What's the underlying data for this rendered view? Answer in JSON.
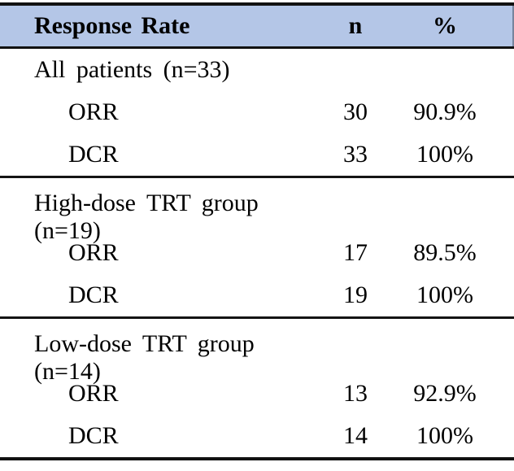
{
  "table": {
    "header": {
      "label": "Response Rate",
      "n": "n",
      "pct": "%"
    },
    "colors": {
      "header_bg": "#B4C6E7",
      "rule": "#141414",
      "text": "#000000"
    },
    "sections": [
      {
        "group": "All patients (n=33)",
        "rows": [
          {
            "label": "ORR",
            "n": "30",
            "pct": "90.9%"
          },
          {
            "label": "DCR",
            "n": "33",
            "pct": "100%"
          }
        ]
      },
      {
        "group": "High-dose TRT group (n=19)",
        "rows": [
          {
            "label": "ORR",
            "n": "17",
            "pct": "89.5%"
          },
          {
            "label": "DCR",
            "n": "19",
            "pct": "100%"
          }
        ]
      },
      {
        "group": "Low-dose TRT group (n=14)",
        "rows": [
          {
            "label": "ORR",
            "n": "13",
            "pct": "92.9%"
          },
          {
            "label": "DCR",
            "n": "14",
            "pct": "100%"
          }
        ]
      }
    ]
  },
  "chart_data": {
    "type": "table",
    "title": "Response Rate",
    "columns": [
      "Response Rate",
      "n",
      "%"
    ],
    "groups": [
      {
        "name": "All patients",
        "n_total": 33,
        "ORR_n": 30,
        "ORR_pct": 90.9,
        "DCR_n": 33,
        "DCR_pct": 100
      },
      {
        "name": "High-dose TRT group",
        "n_total": 19,
        "ORR_n": 17,
        "ORR_pct": 89.5,
        "DCR_n": 19,
        "DCR_pct": 100
      },
      {
        "name": "Low-dose TRT group",
        "n_total": 14,
        "ORR_n": 13,
        "ORR_pct": 92.9,
        "DCR_n": 14,
        "DCR_pct": 100
      }
    ]
  }
}
